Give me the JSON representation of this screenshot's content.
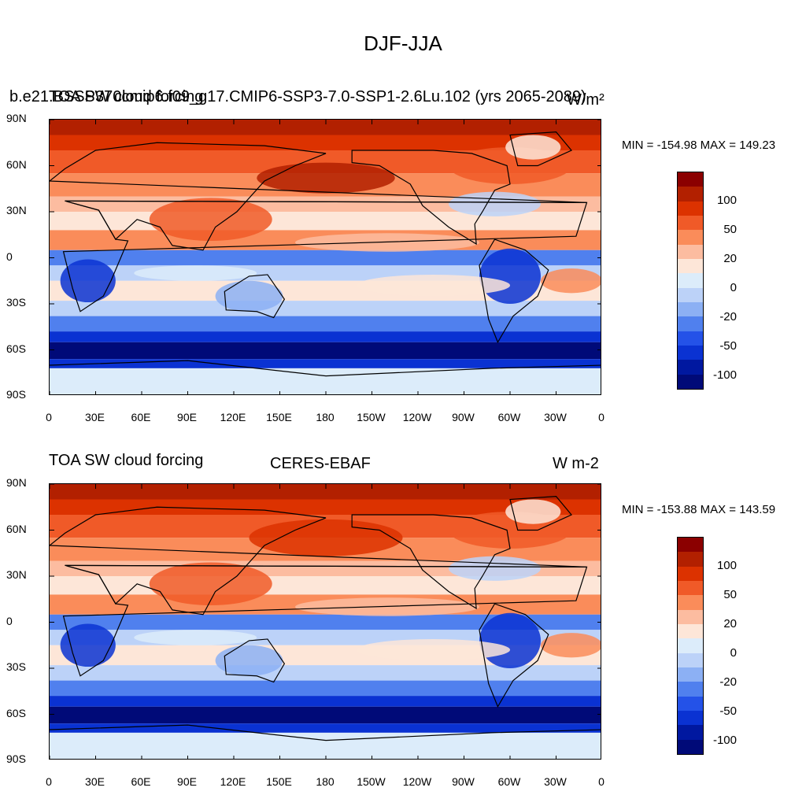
{
  "title": "DJF-JJA",
  "panels": [
    {
      "left_string": "TOA SW cloud forcing",
      "center_string": "b.e21.BSSP370cmip6.f09_g17.CMIP6-SSP3-7.0-SSP1-2.6Lu.102 (yrs 2065-2089)",
      "right_string": "W/m²",
      "min_max": "MIN = -154.98  MAX = 149.23"
    },
    {
      "left_string": "TOA SW cloud forcing",
      "center_string": "CERES-EBAF",
      "right_string": "W m-2",
      "min_max": "MIN = -153.88  MAX = 143.59"
    }
  ],
  "axes": {
    "lat_labels": [
      "90N",
      "60N",
      "30N",
      "0",
      "30S",
      "60S",
      "90S"
    ],
    "lon_labels": [
      "0",
      "30E",
      "60E",
      "90E",
      "120E",
      "150E",
      "180",
      "150W",
      "120W",
      "90W",
      "60W",
      "30W",
      "0"
    ]
  },
  "colorbar": {
    "labels": [
      "100",
      "50",
      "20",
      "0",
      "-20",
      "-50",
      "-100"
    ],
    "colors": [
      "#8b0000",
      "#b22000",
      "#dc3200",
      "#f05a28",
      "#fa8c5a",
      "#fcbca0",
      "#fde6d8",
      "#dcecfa",
      "#bcd2f8",
      "#8cb0f4",
      "#5080ee",
      "#2452e8",
      "#0a32d2",
      "#0018a0",
      "#000a78"
    ]
  }
}
